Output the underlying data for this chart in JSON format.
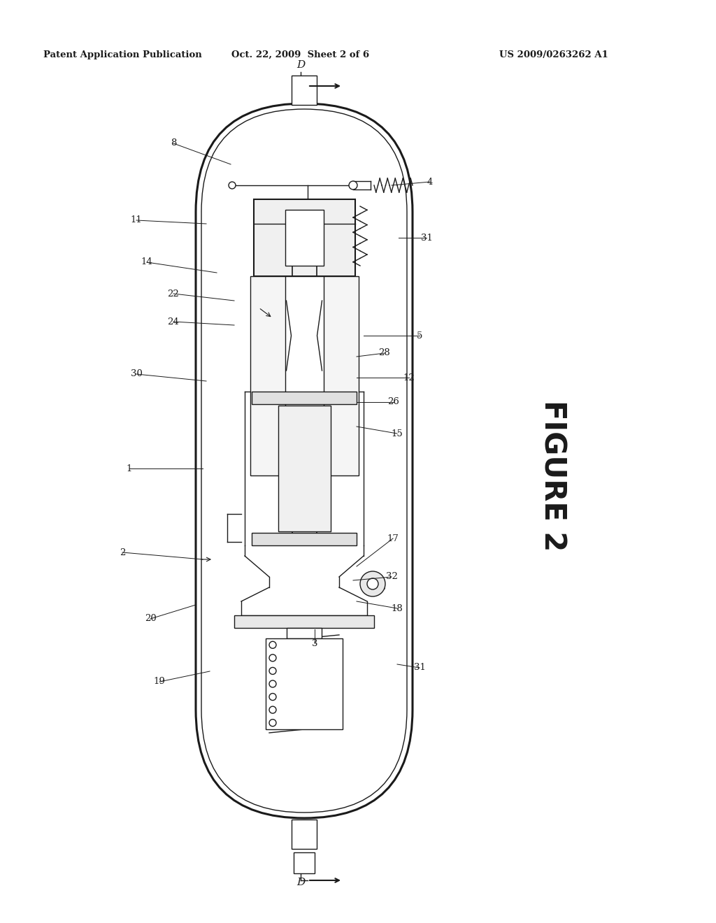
{
  "header_left": "Patent Application Publication",
  "header_mid": "Oct. 22, 2009  Sheet 2 of 6",
  "header_right": "US 2009/0263262 A1",
  "figure_label": "FIGURE 2",
  "bg_color": "#ffffff",
  "line_color": "#1a1a1a",
  "fig_w": 10.24,
  "fig_h": 13.2,
  "dpi": 100
}
